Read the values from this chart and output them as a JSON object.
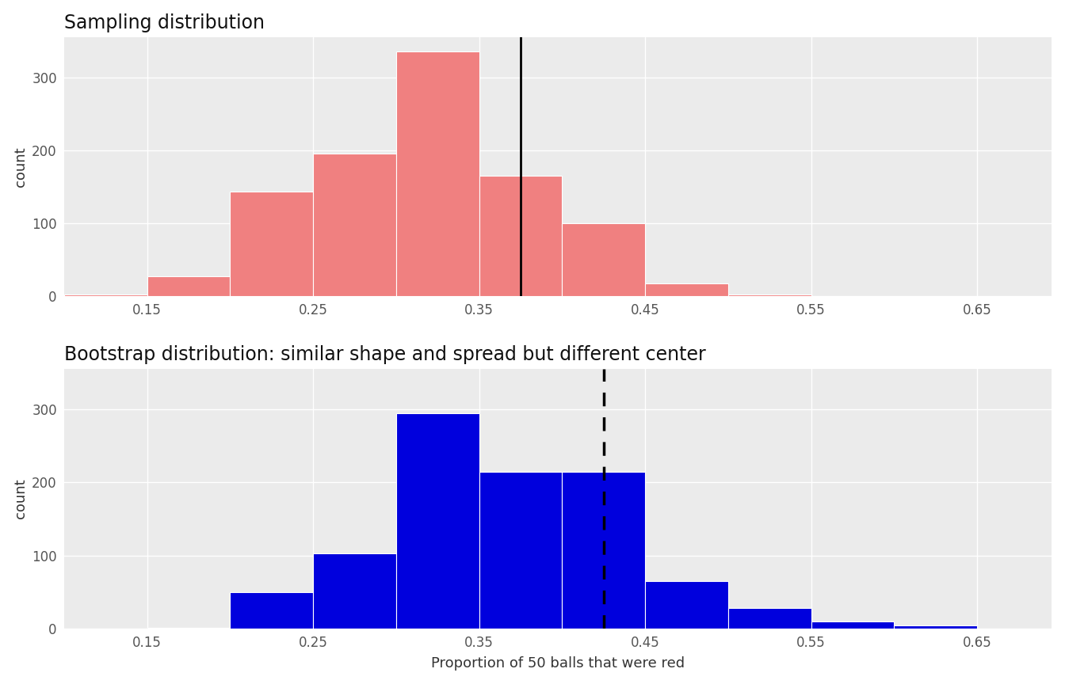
{
  "title_top": "Sampling distribution",
  "title_bottom": "Bootstrap distribution: similar shape and spread but different center",
  "xlabel": "Proportion of 50 balls that were red",
  "ylabel": "count",
  "bg_color": "#EBEBEB",
  "grid_color": "#FFFFFF",
  "sampling_bin_edges": [
    0.1,
    0.15,
    0.2,
    0.25,
    0.3,
    0.35,
    0.4,
    0.45,
    0.5,
    0.55,
    0.6
  ],
  "sampling_counts": [
    3,
    28,
    143,
    195,
    335,
    165,
    100,
    18,
    3,
    0
  ],
  "sampling_color": "#F08080",
  "sampling_line_x": 0.375,
  "bootstrap_bin_edges": [
    0.1,
    0.15,
    0.2,
    0.25,
    0.3,
    0.35,
    0.4,
    0.45,
    0.5,
    0.55,
    0.6,
    0.65
  ],
  "bootstrap_counts": [
    0,
    1,
    50,
    103,
    295,
    215,
    215,
    65,
    28,
    10,
    4
  ],
  "bootstrap_color": "#0000DD",
  "bootstrap_line_x": 0.425,
  "xlim": [
    0.1,
    0.695
  ],
  "xticks": [
    0.15,
    0.25,
    0.35,
    0.45,
    0.55,
    0.65
  ],
  "ylim": [
    0,
    355
  ],
  "yticks": [
    0,
    100,
    200,
    300
  ],
  "title_fontsize": 17,
  "axis_label_fontsize": 13,
  "tick_fontsize": 12,
  "ylabel_fontsize": 13
}
